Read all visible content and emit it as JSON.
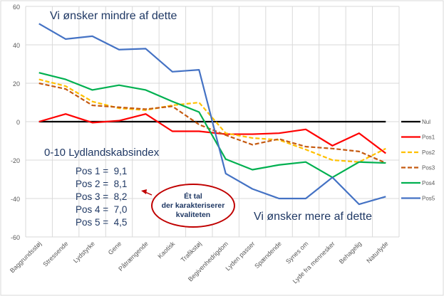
{
  "chart_data": {
    "type": "line",
    "title": "",
    "xlabel": "",
    "ylabel": "",
    "ylim": [
      -60,
      60
    ],
    "yticks": [
      -60,
      -40,
      -20,
      0,
      20,
      40,
      60
    ],
    "grid": true,
    "legend": "right",
    "categories": [
      "Baggrundsstøj",
      "Stressende",
      "Lydstyrke",
      "Gene",
      "Påtrængende",
      "Kaotisk",
      "Trafikstøj",
      "Begivenhedrigdom",
      "Lyden passer",
      "Spændende",
      "Synes om",
      "Lyde fra mennesker",
      "Behagelig",
      "Naturlyde"
    ],
    "series": [
      {
        "name": "Nul",
        "color": "#000000",
        "dash": false,
        "values": [
          0,
          0,
          0,
          0,
          0,
          0,
          0,
          0,
          0,
          0,
          0,
          0,
          0,
          0
        ]
      },
      {
        "name": "Pos1",
        "color": "#ff0000",
        "dash": false,
        "values": [
          0,
          4,
          -0.5,
          0.5,
          4,
          -5,
          -5,
          -6.5,
          -6.5,
          -6,
          -4,
          -12.5,
          -6,
          -16.5
        ]
      },
      {
        "name": "Pos2",
        "color": "#ffc000",
        "dash": true,
        "values": [
          22,
          18.5,
          10.5,
          7,
          6,
          8.5,
          10,
          -6,
          -8.5,
          -9.5,
          -14.5,
          -20,
          -21,
          -14
        ]
      },
      {
        "name": "Pos3",
        "color": "#c55a11",
        "dash": true,
        "values": [
          20,
          17,
          8.5,
          7.5,
          6.5,
          8,
          -1.5,
          -7,
          -12,
          -9,
          -13,
          -14,
          -15.5,
          -21.5
        ]
      },
      {
        "name": "Pos4",
        "color": "#00b050",
        "dash": false,
        "values": [
          25.5,
          22,
          16.5,
          19,
          16.5,
          10.5,
          5,
          -19.5,
          -25,
          -22.5,
          -21,
          -29,
          -21,
          -21.5
        ]
      },
      {
        "name": "Pos5",
        "color": "#4472c4",
        "dash": false,
        "values": [
          51,
          43,
          44.5,
          37.5,
          38,
          26,
          27,
          -27,
          -35,
          -40,
          -40,
          -29,
          -43,
          -39
        ]
      }
    ],
    "annotations": {
      "top": "Vi ønsker mindre af dette",
      "bottom": "Vi ønsker mere af dette",
      "index_title": "0-10 Lydlandskabsindex",
      "index_values": [
        "Pos 1 =  9,1",
        "Pos 2 =  8,1",
        "Pos 3 =  8,2",
        "Pos 4 =  7,0",
        "Pos 5 =  4,5"
      ],
      "callout": [
        "Ét tal",
        "der karakteriserer",
        "kvaliteten"
      ]
    }
  }
}
